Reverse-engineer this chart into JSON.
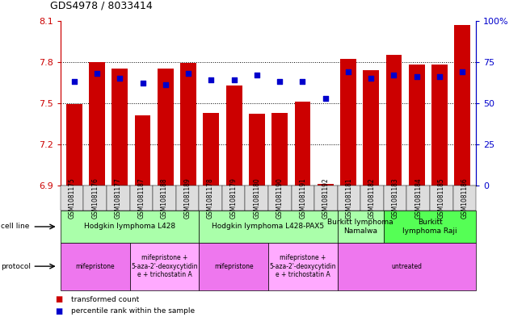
{
  "title": "GDS4978 / 8033414",
  "samples": [
    "GSM1081175",
    "GSM1081176",
    "GSM1081177",
    "GSM1081187",
    "GSM1081188",
    "GSM1081189",
    "GSM1081178",
    "GSM1081179",
    "GSM1081180",
    "GSM1081190",
    "GSM1081191",
    "GSM1081192",
    "GSM1081181",
    "GSM1081182",
    "GSM1081183",
    "GSM1081184",
    "GSM1081185",
    "GSM1081186"
  ],
  "bar_values": [
    7.49,
    7.8,
    7.75,
    7.41,
    7.75,
    7.79,
    7.43,
    7.63,
    7.42,
    7.43,
    7.51,
    6.91,
    7.82,
    7.74,
    7.85,
    7.78,
    7.78,
    8.07
  ],
  "percentile_values": [
    63,
    68,
    65,
    62,
    61,
    68,
    64,
    64,
    67,
    63,
    63,
    53,
    69,
    65,
    67,
    66,
    66,
    69
  ],
  "ymin": 6.9,
  "ymax": 8.1,
  "yticks": [
    6.9,
    7.2,
    7.5,
    7.8,
    8.1
  ],
  "right_yticks": [
    0,
    25,
    50,
    75,
    100
  ],
  "bar_color": "#cc0000",
  "percentile_color": "#0000cc",
  "cell_line_groups": [
    {
      "label": "Hodgkin lymphoma L428",
      "start": 0,
      "end": 5,
      "color": "#aaffaa"
    },
    {
      "label": "Hodgkin lymphoma L428-PAX5",
      "start": 6,
      "end": 11,
      "color": "#aaffaa"
    },
    {
      "label": "Burkitt lymphoma\nNamalwa",
      "start": 12,
      "end": 13,
      "color": "#aaffaa"
    },
    {
      "label": "Burkitt\nlymphoma Raji",
      "start": 14,
      "end": 17,
      "color": "#55ff55"
    }
  ],
  "protocol_groups": [
    {
      "label": "mifepristone",
      "start": 0,
      "end": 2,
      "color": "#ee77ee"
    },
    {
      "label": "mifepristone +\n5-aza-2'-deoxycytidin\ne + trichostatin A",
      "start": 3,
      "end": 5,
      "color": "#ffaaff"
    },
    {
      "label": "mifepristone",
      "start": 6,
      "end": 8,
      "color": "#ee77ee"
    },
    {
      "label": "mifepristone +\n5-aza-2'-deoxycytidin\ne + trichostatin A",
      "start": 9,
      "end": 11,
      "color": "#ffaaff"
    },
    {
      "label": "untreated",
      "start": 12,
      "end": 17,
      "color": "#ee77ee"
    }
  ],
  "cell_line_label": "cell line",
  "protocol_label": "protocol",
  "legend_transformed": "transformed count",
  "legend_percentile": "percentile rank within the sample",
  "bar_width": 0.7,
  "xticklabel_fontsize": 5.5,
  "yticklabel_fontsize": 8,
  "title_fontsize": 9
}
